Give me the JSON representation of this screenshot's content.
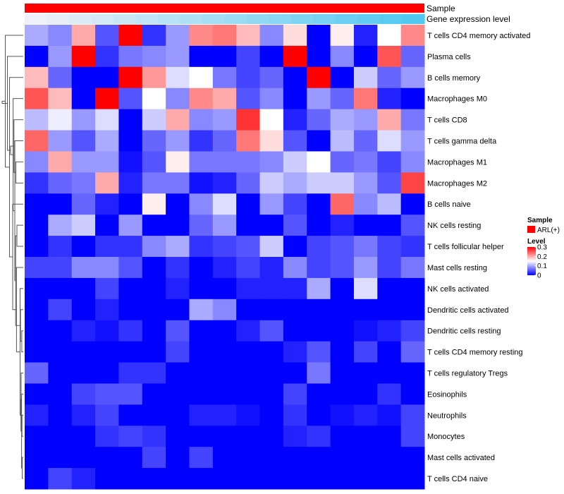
{
  "chart_data": {
    "type": "heatmap",
    "annotations": {
      "sample_label": "Sample",
      "expression_label": "Gene expression level",
      "sample_color": "#ff0000"
    },
    "rows": [
      "T cells CD4 memory activated",
      "Plasma cells",
      "B cells memory",
      "Macrophages M0",
      "T cells CD8",
      "T cells gamma delta",
      "Macrophages M1",
      "Macrophages M2",
      "B cells naive",
      "NK cells resting",
      "T cells follicular helper",
      "Mast cells resting",
      "NK cells activated",
      "Dendritic cells activated",
      "Dendritic cells resting",
      "T cells CD4 memory resting",
      "T cells regulatory  Tregs",
      "Eosinophils",
      "Neutrophils",
      "Monocytes",
      "Mast cells activated",
      "T cells CD4 naive"
    ],
    "expression_levels": [
      0.02,
      0.04,
      0.06,
      0.08,
      0.1,
      0.12,
      0.14,
      0.16,
      0.18,
      0.2,
      0.22,
      0.24,
      0.26,
      0.28,
      0.3,
      0.32,
      0.34,
      0.36
    ],
    "values": [
      [
        0.1,
        0.08,
        0.2,
        0.05,
        0.3,
        0.03,
        0.09,
        0.22,
        0.23,
        0.19,
        0.08,
        0.17,
        0.0,
        0.16,
        0.02,
        0.15,
        0.22
      ],
      [
        0.0,
        0.09,
        0.3,
        0.03,
        0.07,
        0.08,
        0.09,
        0.0,
        0.0,
        0.04,
        0.0,
        0.3,
        0.0,
        0.08,
        0.0,
        0.25,
        0.06
      ],
      [
        0.19,
        0.06,
        0.0,
        0.0,
        0.3,
        0.21,
        0.13,
        0.15,
        0.07,
        0.04,
        0.06,
        0.0,
        0.3,
        0.0,
        0.12,
        0.06,
        0.09
      ],
      [
        0.25,
        0.19,
        0.0,
        0.3,
        0.05,
        0.15,
        0.08,
        0.22,
        0.2,
        0.05,
        0.08,
        0.0,
        0.09,
        0.06,
        0.23,
        0.02,
        0.0
      ],
      [
        0.11,
        0.14,
        0.09,
        0.13,
        0.0,
        0.12,
        0.2,
        0.08,
        0.09,
        0.27,
        0.15,
        0.02,
        0.06,
        0.1,
        0.09,
        0.2,
        0.07
      ],
      [
        0.24,
        0.09,
        0.05,
        0.1,
        0.0,
        0.06,
        0.09,
        0.03,
        0.06,
        0.23,
        0.17,
        0.05,
        0.0,
        0.11,
        0.06,
        0.13,
        0.09
      ],
      [
        0.08,
        0.2,
        0.09,
        0.09,
        0.01,
        0.05,
        0.16,
        0.07,
        0.07,
        0.07,
        0.08,
        0.12,
        0.15,
        0.06,
        0.07,
        0.04,
        0.08
      ],
      [
        0.03,
        0.06,
        0.07,
        0.2,
        0.02,
        0.07,
        0.07,
        0.01,
        0.02,
        0.06,
        0.12,
        0.1,
        0.12,
        0.12,
        0.09,
        0.05,
        0.26
      ],
      [
        0.0,
        0.0,
        0.06,
        0.02,
        0.0,
        0.16,
        0.0,
        0.08,
        0.13,
        0.0,
        0.09,
        0.04,
        0.0,
        0.24,
        0.08,
        0.11,
        0.0
      ],
      [
        0.0,
        0.1,
        0.12,
        0.0,
        0.09,
        0.0,
        0.0,
        0.06,
        0.09,
        0.0,
        0.0,
        0.05,
        0.0,
        0.02,
        0.0,
        0.0,
        0.05
      ],
      [
        0.0,
        0.03,
        0.0,
        0.03,
        0.03,
        0.08,
        0.1,
        0.03,
        0.04,
        0.05,
        0.12,
        0.0,
        0.04,
        0.05,
        0.07,
        0.04,
        0.03
      ],
      [
        0.04,
        0.04,
        0.08,
        0.08,
        0.05,
        0.0,
        0.03,
        0.0,
        0.02,
        0.04,
        0.02,
        0.08,
        0.04,
        0.05,
        0.09,
        0.04,
        0.07
      ],
      [
        0.0,
        0.0,
        0.0,
        0.04,
        0.0,
        0.0,
        0.02,
        0.0,
        0.0,
        0.02,
        0.02,
        0.02,
        0.1,
        0.0,
        0.13,
        0.0,
        0.0
      ],
      [
        0.0,
        0.04,
        0.0,
        0.02,
        0.0,
        0.0,
        0.0,
        0.1,
        0.08,
        0.0,
        0.0,
        0.0,
        0.0,
        0.0,
        0.0,
        0.0,
        0.0
      ],
      [
        0.0,
        0.0,
        0.02,
        0.01,
        0.03,
        0.0,
        0.05,
        0.0,
        0.0,
        0.02,
        0.05,
        0.0,
        0.0,
        0.0,
        0.01,
        0.02,
        0.04
      ],
      [
        0.0,
        0.0,
        0.0,
        0.0,
        0.0,
        0.0,
        0.04,
        0.0,
        0.0,
        0.0,
        0.0,
        0.02,
        0.05,
        0.0,
        0.04,
        0.0,
        0.06
      ],
      [
        0.06,
        0.0,
        0.0,
        0.0,
        0.03,
        0.03,
        0.0,
        0.0,
        0.0,
        0.0,
        0.0,
        0.0,
        0.07,
        0.0,
        0.0,
        0.0,
        0.0
      ],
      [
        0.0,
        0.0,
        0.04,
        0.05,
        0.05,
        0.0,
        0.0,
        0.0,
        0.0,
        0.0,
        0.0,
        0.04,
        0.0,
        0.0,
        0.0,
        0.03,
        0.0
      ],
      [
        0.02,
        0.0,
        0.02,
        0.04,
        0.0,
        0.0,
        0.0,
        0.02,
        0.02,
        0.01,
        0.0,
        0.03,
        0.0,
        0.01,
        0.02,
        0.01,
        0.04
      ],
      [
        0.0,
        0.0,
        0.0,
        0.03,
        0.04,
        0.03,
        0.0,
        0.0,
        0.0,
        0.0,
        0.0,
        0.02,
        0.03,
        0.0,
        0.0,
        0.0,
        0.04
      ],
      [
        0.0,
        0.0,
        0.0,
        0.0,
        0.0,
        0.04,
        0.0,
        0.04,
        0.0,
        0.0,
        0.0,
        0.0,
        0.0,
        0.0,
        0.0,
        0.0,
        0.0
      ],
      [
        0.0,
        0.04,
        0.02,
        0.0,
        0.0,
        0.0,
        0.0,
        0.0,
        0.0,
        0.0,
        0.0,
        0.0,
        0.0,
        0.0,
        0.0,
        0.0,
        0.0
      ]
    ],
    "dendrogram": [
      [
        20,
        21
      ],
      [
        18,
        19
      ],
      [
        17,
        22
      ],
      [
        16,
        23
      ],
      [
        14,
        15
      ],
      [
        24,
        25
      ],
      [
        13,
        26
      ],
      [
        12,
        27
      ],
      [
        9,
        10
      ],
      [
        11,
        29
      ],
      [
        28,
        30
      ],
      [
        6,
        7
      ],
      [
        5,
        32
      ],
      [
        4,
        33
      ],
      [
        3,
        34
      ],
      [
        8,
        31
      ],
      [
        35,
        36
      ],
      [
        2,
        37
      ],
      [
        1,
        38
      ],
      [
        0,
        39
      ],
      [
        40,
        41
      ]
    ],
    "dendrogram_heights": [
      0.5,
      0.6,
      0.8,
      1.0,
      0.7,
      1.1,
      1.3,
      1.5,
      3.0,
      3.2,
      3.6,
      3.5,
      4.0,
      4.4,
      4.8,
      5.0,
      6.0,
      6.5,
      7.5,
      8.5,
      10.0
    ],
    "legend": {
      "sample_title": "Sample",
      "sample_items": [
        {
          "label": "ARL(+)",
          "color": "#ff0000"
        }
      ],
      "level_title": "Level",
      "level_ticks": [
        "0.3",
        "0.2",
        "0.1",
        "0"
      ],
      "level_tick_values": [
        0.3,
        0.2,
        0.1,
        0
      ],
      "color_scale": {
        "low": "#0000ff",
        "mid": "#ffffff",
        "high": "#ff0000",
        "min": 0,
        "mid_value": 0.15,
        "max": 0.3
      }
    }
  }
}
